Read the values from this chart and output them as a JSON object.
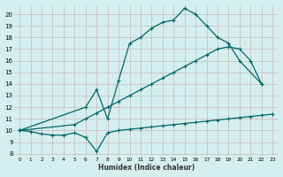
{
  "xlabel": "Humidex (Indice chaleur)",
  "bg_color": "#d5efef",
  "grid_color": "#c8e8e8",
  "line_color": "#006666",
  "xlim": [
    -0.5,
    23.5
  ],
  "ylim": [
    7.8,
    20.8
  ],
  "yticks": [
    8,
    9,
    10,
    11,
    12,
    13,
    14,
    15,
    16,
    17,
    18,
    19,
    20
  ],
  "xticks": [
    0,
    1,
    2,
    3,
    4,
    5,
    6,
    7,
    8,
    9,
    10,
    11,
    12,
    13,
    14,
    15,
    16,
    17,
    18,
    19,
    20,
    21,
    22,
    23
  ],
  "line_flat_x": [
    0,
    1,
    2,
    3,
    4,
    5,
    6,
    7,
    8,
    9,
    10,
    11,
    12,
    13,
    14,
    15,
    16,
    17,
    18,
    19,
    20,
    21,
    22,
    23
  ],
  "line_flat_y": [
    10.0,
    9.9,
    9.7,
    9.6,
    9.6,
    9.8,
    9.4,
    8.2,
    9.8,
    10.0,
    10.1,
    10.2,
    10.3,
    10.4,
    10.5,
    10.6,
    10.7,
    10.8,
    10.9,
    11.0,
    11.1,
    11.2,
    11.3,
    11.4
  ],
  "line_mid_x": [
    0,
    5,
    6,
    7,
    8,
    9,
    10,
    11,
    12,
    13,
    14,
    15,
    16,
    17,
    18,
    19,
    20,
    21,
    22
  ],
  "line_mid_y": [
    10.0,
    10.5,
    11.0,
    11.5,
    12.0,
    12.5,
    13.0,
    13.5,
    14.0,
    14.5,
    15.0,
    15.5,
    16.0,
    16.5,
    17.0,
    17.2,
    17.0,
    16.0,
    14.0
  ],
  "line_top_x": [
    0,
    6,
    7,
    8,
    9,
    10,
    11,
    12,
    13,
    14,
    15,
    16,
    17,
    18,
    19,
    20,
    22
  ],
  "line_top_y": [
    10.0,
    12.0,
    13.5,
    11.0,
    14.3,
    17.5,
    18.0,
    18.8,
    19.3,
    19.5,
    20.5,
    20.0,
    19.0,
    18.0,
    17.5,
    16.0,
    14.0
  ]
}
